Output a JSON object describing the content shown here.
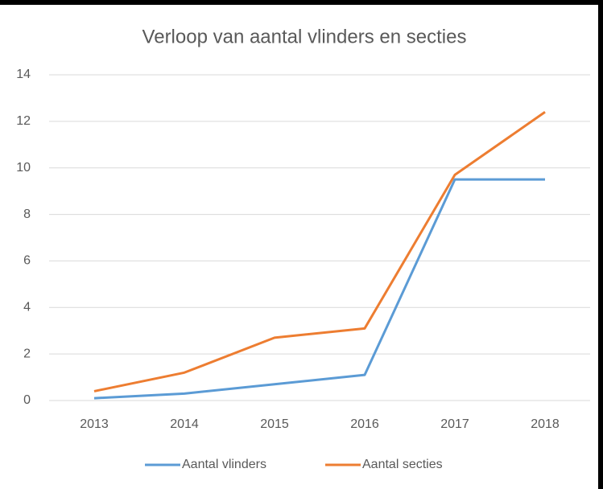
{
  "chart_data": {
    "type": "line",
    "title": "Verloop van aantal vlinders en secties",
    "categories": [
      "2013",
      "2014",
      "2015",
      "2016",
      "2017",
      "2018"
    ],
    "series": [
      {
        "name": "Aantal vlinders",
        "color": "#5b9bd5",
        "values": [
          0.1,
          0.3,
          0.7,
          1.1,
          9.5,
          9.5
        ]
      },
      {
        "name": "Aantal secties",
        "color": "#ed7d31",
        "values": [
          0.4,
          1.2,
          2.7,
          3.1,
          9.7,
          12.4
        ]
      }
    ],
    "ylim": [
      0,
      14
    ],
    "yticks": [
      0,
      2,
      4,
      6,
      8,
      10,
      12,
      14
    ],
    "grid": true,
    "legend": "bottom"
  }
}
